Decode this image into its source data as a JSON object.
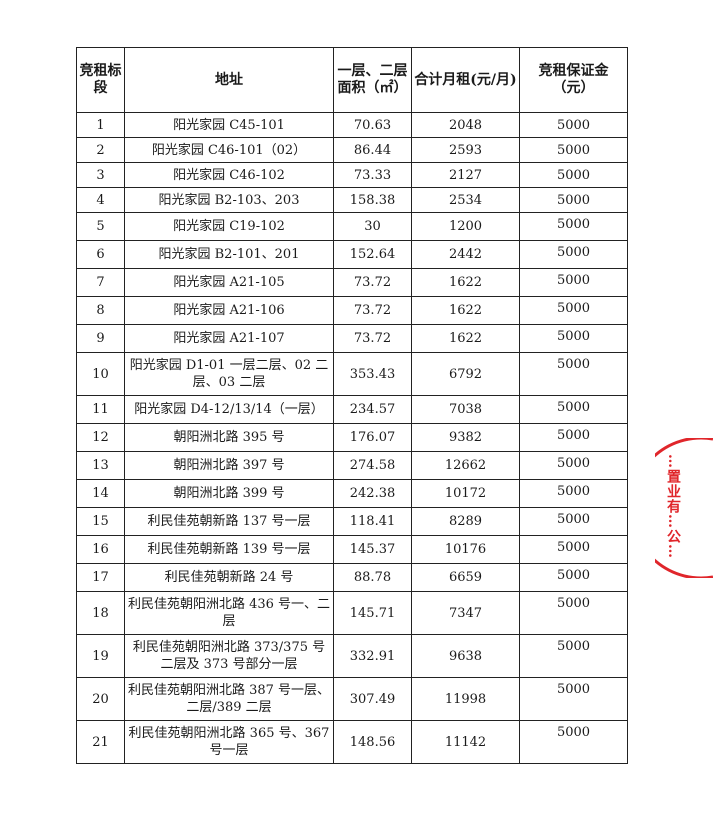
{
  "headers": [
    "竞租标段",
    "地址",
    "一层、二层面积（㎡）",
    "合计月租(元/月)",
    "竞租保证金（元）"
  ],
  "rows": [
    [
      "1",
      "阳光家园 C45-101",
      "70.63",
      "2048",
      "5000"
    ],
    [
      "2",
      "阳光家园 C46-101（02）",
      "86.44",
      "2593",
      "5000"
    ],
    [
      "3",
      "阳光家园 C46-102",
      "73.33",
      "2127",
      "5000"
    ],
    [
      "4",
      "阳光家园 B2-103、203",
      "158.38",
      "2534",
      "5000"
    ],
    [
      "5",
      "阳光家园 C19-102",
      "30",
      "1200",
      "5000"
    ],
    [
      "6",
      "阳光家园 B2-101、201",
      "152.64",
      "2442",
      "5000"
    ],
    [
      "7",
      "阳光家园 A21-105",
      "73.72",
      "1622",
      "5000"
    ],
    [
      "8",
      "阳光家园 A21-106",
      "73.72",
      "1622",
      "5000"
    ],
    [
      "9",
      "阳光家园 A21-107",
      "73.72",
      "1622",
      "5000"
    ],
    [
      "10",
      "阳光家园 D1-01 一层二层、02 二层、03 二层",
      "353.43",
      "6792",
      "5000"
    ],
    [
      "11",
      "阳光家园 D4-12/13/14（一层）",
      "234.57",
      "7038",
      "5000"
    ],
    [
      "12",
      "朝阳洲北路 395 号",
      "176.07",
      "9382",
      "5000"
    ],
    [
      "13",
      "朝阳洲北路 397 号",
      "274.58",
      "12662",
      "5000"
    ],
    [
      "14",
      "朝阳洲北路 399 号",
      "242.38",
      "10172",
      "5000"
    ],
    [
      "15",
      "利民佳苑朝新路 137 号一层",
      "118.41",
      "8289",
      "5000"
    ],
    [
      "16",
      "利民佳苑朝新路 139 号一层",
      "145.37",
      "10176",
      "5000"
    ],
    [
      "17",
      "利民佳苑朝新路 24 号",
      "88.78",
      "6659",
      "5000"
    ],
    [
      "18",
      "利民佳苑朝阳洲北路 436 号一、二层",
      "145.71",
      "7347",
      "5000"
    ],
    [
      "19",
      "利民佳苑朝阳洲北路 373/375 号二层及 373 号部分一层",
      "332.91",
      "9638",
      "5000"
    ],
    [
      "20",
      "利民佳苑朝阳洲北路 387 号一层、二层/389 二层",
      "307.49",
      "11998",
      "5000"
    ],
    [
      "21",
      "利民佳苑朝阳洲北路 365 号、367 号一层",
      "148.56",
      "11142",
      "5000"
    ]
  ],
  "stamp": {
    "text": "…置业有…公…",
    "color": "#e0262b"
  }
}
